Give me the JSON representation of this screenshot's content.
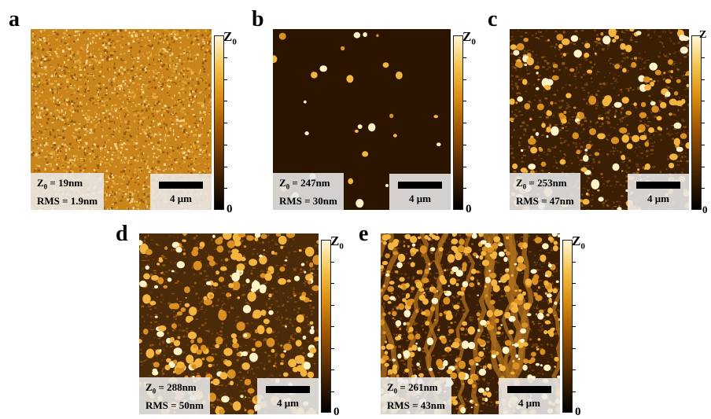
{
  "panels": [
    {
      "letter": "a",
      "z0": "19nm",
      "rms": "1.9nm",
      "scale": "4 μm",
      "cbar_top": "Z",
      "cbar_sub": "0",
      "cbar_bottom": "0"
    },
    {
      "letter": "b",
      "z0": "247nm",
      "rms": "30nm",
      "scale": "4 μm",
      "cbar_top": "Z",
      "cbar_sub": "0",
      "cbar_bottom": "0"
    },
    {
      "letter": "c",
      "z0": "253nm",
      "rms": "47nm",
      "scale": "4 μm",
      "cbar_top": "Z",
      "cbar_sub": "0",
      "cbar_bottom": "0"
    },
    {
      "letter": "d",
      "z0": "288nm",
      "rms": "50nm",
      "scale": "4 μm",
      "cbar_top": "Z",
      "cbar_sub": "0",
      "cbar_bottom": "0"
    },
    {
      "letter": "e",
      "z0": "261nm",
      "rms": "43nm",
      "scale": "4 μm",
      "cbar_top": "Z",
      "cbar_sub": "0",
      "cbar_bottom": "0"
    }
  ],
  "labels": {
    "z_prefix": "Z",
    "z_sub": "0",
    "equals": " = ",
    "rms_prefix": "RMS = "
  },
  "colors": {
    "dark": "#1a0c00",
    "mid": "#8a4a00",
    "bright": "#f3b540",
    "highlight": "#fff3c8"
  }
}
